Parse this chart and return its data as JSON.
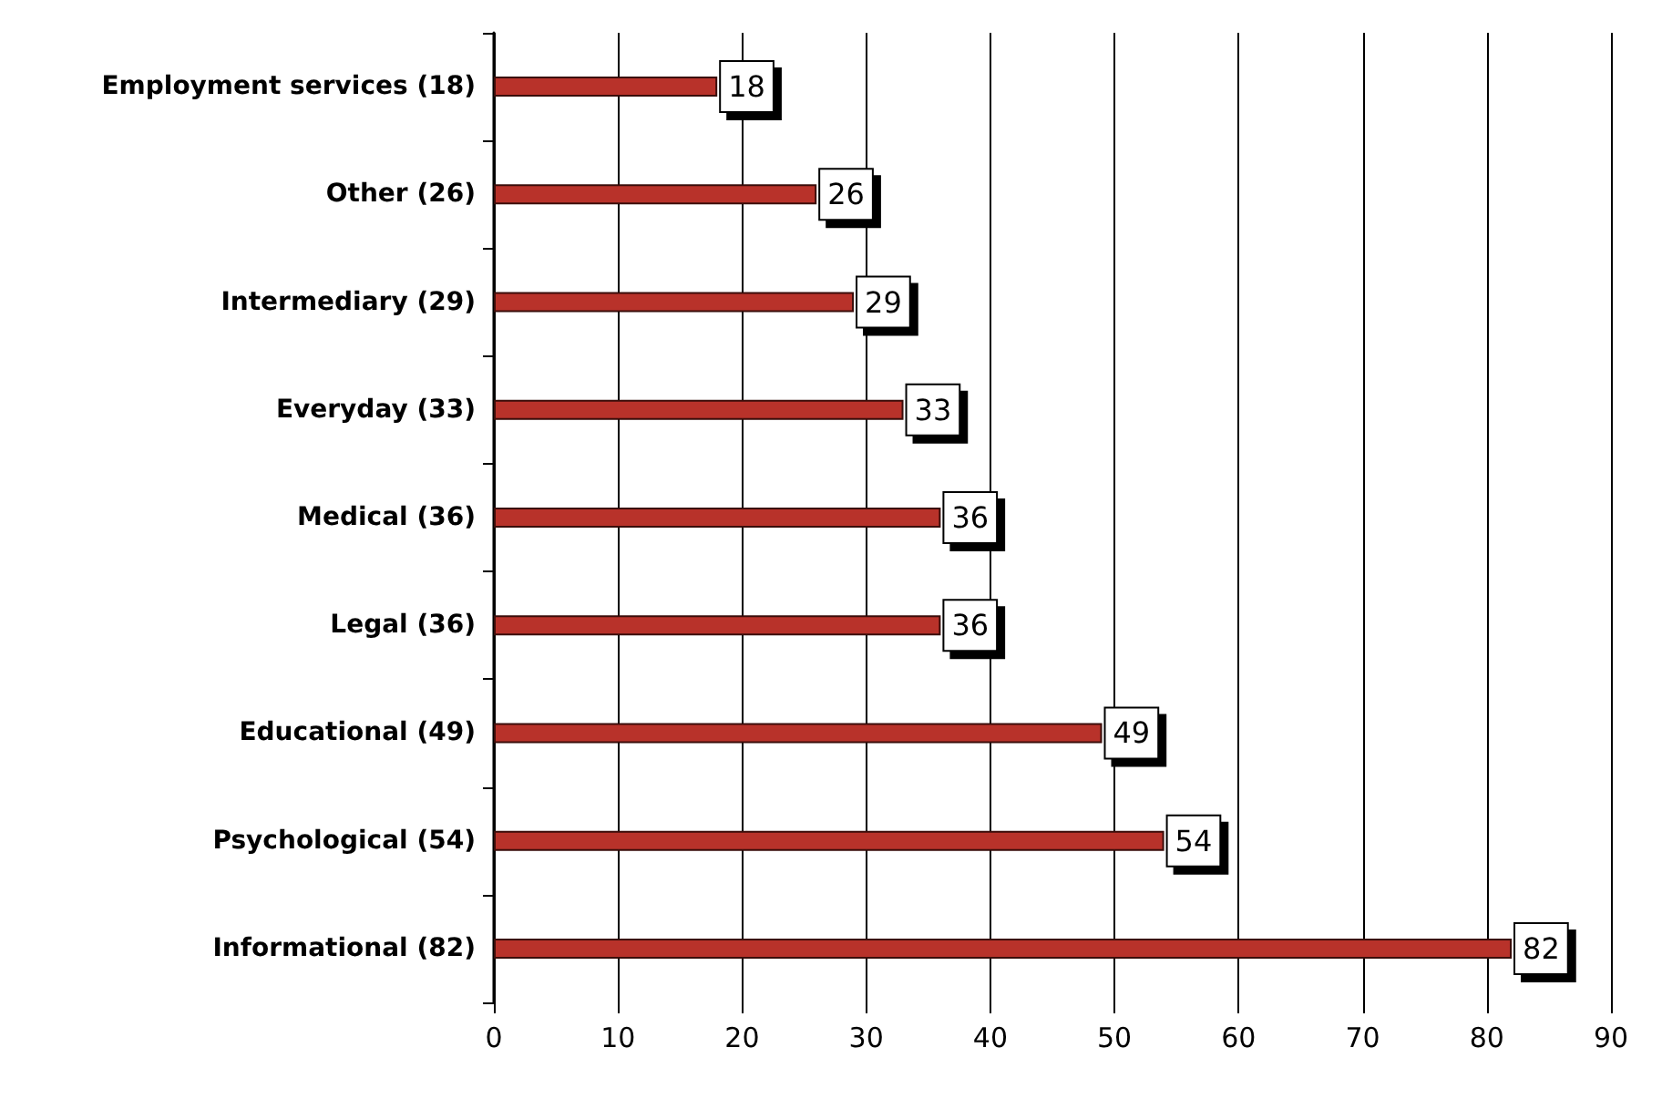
{
  "chart_data": {
    "type": "bar",
    "orientation": "horizontal",
    "categories": [
      "Employment services (18)",
      "Other (26)",
      "Intermediary (29)",
      "Everyday (33)",
      "Medical (36)",
      "Legal (36)",
      "Educational (49)",
      "Psychological (54)",
      "Informational (82)"
    ],
    "values": [
      18,
      26,
      29,
      33,
      36,
      36,
      49,
      54,
      82
    ],
    "color": "#b8322a",
    "xlim": [
      0,
      90
    ],
    "xticks": [
      0,
      10,
      20,
      30,
      40,
      50,
      60,
      70,
      80,
      90
    ],
    "grid": "x",
    "data_labels": true
  }
}
